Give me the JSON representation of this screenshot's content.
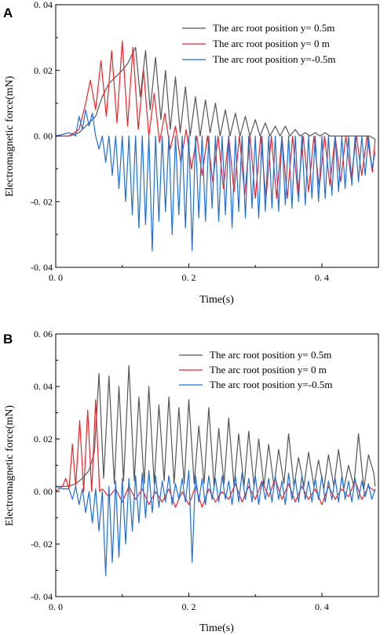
{
  "chart_data": [
    {
      "panel": "A",
      "type": "line",
      "xlabel": "Time(s)",
      "ylabel": "Electromagnetic force(mN)",
      "xlim": [
        0.0,
        0.485
      ],
      "ylim": [
        -0.04,
        0.04
      ],
      "xticks": [
        0.0,
        0.2,
        0.4
      ],
      "xtick_labels": [
        "0. 0",
        "0. 2",
        "0. 4"
      ],
      "yticks": [
        -0.04,
        -0.02,
        0.0,
        0.02,
        0.04
      ],
      "ytick_labels": [
        "-0. 04",
        "-0. 02",
        "0. 00",
        "0. 02",
        "0. 04"
      ],
      "legend_position": "top-right",
      "grid": false,
      "series": [
        {
          "name": "The arc root position y= 0.5m",
          "color": "#555555",
          "x": [
            0.0,
            0.02,
            0.035,
            0.05,
            0.06,
            0.07,
            0.08,
            0.09,
            0.1,
            0.108,
            0.115,
            0.12,
            0.127,
            0.135,
            0.142,
            0.15,
            0.158,
            0.165,
            0.172,
            0.18,
            0.187,
            0.195,
            0.202,
            0.21,
            0.217,
            0.225,
            0.232,
            0.24,
            0.247,
            0.255,
            0.262,
            0.27,
            0.277,
            0.285,
            0.292,
            0.3,
            0.307,
            0.315,
            0.322,
            0.33,
            0.337,
            0.345,
            0.352,
            0.36,
            0.367,
            0.375,
            0.382,
            0.39,
            0.397,
            0.405,
            0.412,
            0.42,
            0.427,
            0.435,
            0.442,
            0.45,
            0.457,
            0.465,
            0.472,
            0.48
          ],
          "y": [
            0.0,
            0.0,
            0.001,
            0.004,
            0.006,
            0.012,
            0.016,
            0.018,
            0.02,
            0.022,
            0.025,
            0.027,
            0.012,
            0.026,
            0.008,
            0.024,
            0.005,
            0.02,
            0.002,
            0.018,
            0.001,
            0.015,
            0.0,
            0.012,
            0.0,
            0.011,
            0.001,
            0.01,
            0.0,
            0.008,
            0.0,
            0.007,
            0.0,
            0.006,
            0.0,
            0.005,
            0.0,
            0.004,
            0.0,
            0.003,
            0.0,
            0.003,
            0.0,
            0.002,
            0.0,
            0.001,
            0.0,
            0.001,
            0.0,
            0.001,
            0.0,
            0.0,
            0.0,
            0.0,
            0.0,
            0.0,
            0.0,
            0.0,
            0.0,
            -0.001
          ]
        },
        {
          "name": "The arc root position y= 0  m",
          "color": "#e8262a",
          "x": [
            0.0,
            0.02,
            0.035,
            0.045,
            0.052,
            0.06,
            0.068,
            0.076,
            0.084,
            0.092,
            0.1,
            0.108,
            0.116,
            0.124,
            0.132,
            0.14,
            0.148,
            0.156,
            0.164,
            0.172,
            0.18,
            0.188,
            0.196,
            0.204,
            0.212,
            0.22,
            0.228,
            0.236,
            0.244,
            0.252,
            0.26,
            0.268,
            0.276,
            0.284,
            0.292,
            0.3,
            0.308,
            0.316,
            0.324,
            0.332,
            0.34,
            0.348,
            0.356,
            0.364,
            0.372,
            0.38,
            0.388,
            0.396,
            0.404,
            0.412,
            0.42,
            0.428,
            0.436,
            0.444,
            0.452,
            0.46,
            0.468,
            0.476,
            0.48
          ],
          "y": [
            0.0,
            0.0,
            0.002,
            0.01,
            0.017,
            0.008,
            0.023,
            0.006,
            0.026,
            0.004,
            0.029,
            0.003,
            0.027,
            0.002,
            0.02,
            0.0,
            0.013,
            -0.002,
            0.007,
            -0.004,
            0.003,
            -0.008,
            0.002,
            -0.01,
            0.0,
            -0.012,
            0.0,
            -0.014,
            0.0,
            -0.016,
            0.0,
            -0.017,
            0.0,
            -0.018,
            0.0,
            -0.019,
            0.0,
            -0.019,
            0.0,
            -0.019,
            0.0,
            -0.019,
            0.0,
            -0.018,
            0.0,
            -0.017,
            0.0,
            -0.016,
            0.0,
            -0.015,
            0.0,
            -0.014,
            0.0,
            -0.013,
            0.0,
            -0.012,
            0.0,
            -0.011,
            -0.001
          ]
        },
        {
          "name": "The arc root position y=-0.5m",
          "color": "#1f6fd4",
          "x": [
            0.0,
            0.02,
            0.03,
            0.035,
            0.04,
            0.045,
            0.05,
            0.055,
            0.06,
            0.065,
            0.07,
            0.075,
            0.08,
            0.085,
            0.09,
            0.095,
            0.1,
            0.105,
            0.11,
            0.115,
            0.12,
            0.125,
            0.13,
            0.135,
            0.14,
            0.145,
            0.15,
            0.155,
            0.16,
            0.165,
            0.17,
            0.175,
            0.18,
            0.185,
            0.19,
            0.195,
            0.2,
            0.205,
            0.21,
            0.215,
            0.22,
            0.225,
            0.23,
            0.235,
            0.24,
            0.245,
            0.25,
            0.255,
            0.26,
            0.265,
            0.27,
            0.275,
            0.28,
            0.285,
            0.29,
            0.295,
            0.3,
            0.305,
            0.31,
            0.315,
            0.32,
            0.325,
            0.33,
            0.335,
            0.34,
            0.345,
            0.35,
            0.355,
            0.36,
            0.365,
            0.37,
            0.375,
            0.38,
            0.385,
            0.39,
            0.395,
            0.4,
            0.405,
            0.41,
            0.415,
            0.42,
            0.425,
            0.43,
            0.435,
            0.44,
            0.445,
            0.45,
            0.455,
            0.46,
            0.465,
            0.47,
            0.475,
            0.48
          ],
          "y": [
            0.0,
            0.001,
            0.0,
            0.006,
            0.002,
            0.008,
            0.003,
            0.007,
            0.0,
            -0.004,
            0.0,
            -0.008,
            0.0,
            -0.012,
            0.0,
            -0.016,
            0.0,
            -0.02,
            0.0,
            -0.024,
            0.0,
            -0.028,
            0.0,
            -0.027,
            0.0,
            -0.035,
            0.0,
            -0.026,
            0.0,
            -0.023,
            0.0,
            -0.03,
            0.0,
            -0.024,
            0.0,
            -0.028,
            0.0,
            -0.035,
            0.0,
            -0.025,
            0.0,
            -0.026,
            0.0,
            -0.022,
            0.0,
            -0.026,
            0.0,
            -0.024,
            0.0,
            -0.028,
            0.0,
            -0.023,
            0.0,
            -0.025,
            0.0,
            -0.022,
            0.0,
            -0.025,
            0.0,
            -0.023,
            0.0,
            -0.022,
            0.0,
            -0.023,
            0.0,
            -0.021,
            0.0,
            -0.022,
            0.0,
            -0.02,
            0.0,
            -0.021,
            0.0,
            -0.019,
            0.0,
            -0.02,
            0.0,
            -0.019,
            0.0,
            -0.018,
            0.0,
            -0.017,
            0.0,
            -0.016,
            0.0,
            -0.015,
            0.0,
            -0.014,
            0.0,
            -0.012,
            0.0,
            -0.01,
            -0.005
          ]
        }
      ]
    },
    {
      "panel": "B",
      "type": "line",
      "xlabel": "Time(s)",
      "ylabel": "Electromagnetic force(mN)",
      "xlim": [
        0.0,
        0.485
      ],
      "ylim": [
        -0.04,
        0.06
      ],
      "xticks": [
        0.0,
        0.2,
        0.4
      ],
      "xtick_labels": [
        "0. 0",
        "0. 2",
        "0. 4"
      ],
      "yticks": [
        -0.04,
        -0.02,
        0.0,
        0.02,
        0.04,
        0.06
      ],
      "ytick_labels": [
        "-0. 04",
        "-0. 02",
        "0. 00",
        "0. 02",
        "0. 04",
        "0. 06"
      ],
      "legend_position": "top-right",
      "grid": false,
      "series": [
        {
          "name": "The arc root position y= 0.5m",
          "color": "#555555",
          "x": [
            0.0,
            0.02,
            0.03,
            0.04,
            0.05,
            0.058,
            0.065,
            0.072,
            0.08,
            0.088,
            0.095,
            0.102,
            0.11,
            0.118,
            0.125,
            0.133,
            0.14,
            0.148,
            0.155,
            0.163,
            0.17,
            0.178,
            0.185,
            0.193,
            0.2,
            0.208,
            0.215,
            0.223,
            0.23,
            0.238,
            0.245,
            0.253,
            0.26,
            0.268,
            0.275,
            0.283,
            0.29,
            0.298,
            0.305,
            0.313,
            0.32,
            0.328,
            0.335,
            0.343,
            0.35,
            0.358,
            0.365,
            0.373,
            0.38,
            0.388,
            0.395,
            0.403,
            0.41,
            0.418,
            0.425,
            0.433,
            0.44,
            0.448,
            0.455,
            0.463,
            0.47,
            0.478,
            0.48
          ],
          "y": [
            0.002,
            0.002,
            0.003,
            0.005,
            0.008,
            0.015,
            0.045,
            0.005,
            0.044,
            0.003,
            0.04,
            0.004,
            0.048,
            0.004,
            0.036,
            0.003,
            0.04,
            0.003,
            0.033,
            0.004,
            0.036,
            0.003,
            0.032,
            0.003,
            0.035,
            0.003,
            0.025,
            0.003,
            0.032,
            0.002,
            0.024,
            0.003,
            0.028,
            0.002,
            0.022,
            0.002,
            0.023,
            0.002,
            0.02,
            0.002,
            0.018,
            0.002,
            0.016,
            0.003,
            0.022,
            0.002,
            0.013,
            0.002,
            0.015,
            0.002,
            0.012,
            0.001,
            0.014,
            0.002,
            0.016,
            0.001,
            0.01,
            0.002,
            0.022,
            0.001,
            0.014,
            0.007,
            0.002
          ]
        },
        {
          "name": "The arc root position y= 0  m",
          "color": "#e8262a",
          "x": [
            0.0,
            0.01,
            0.015,
            0.02,
            0.025,
            0.03,
            0.036,
            0.042,
            0.048,
            0.054,
            0.06,
            0.066,
            0.07,
            0.08,
            0.09,
            0.1,
            0.11,
            0.12,
            0.13,
            0.14,
            0.15,
            0.16,
            0.17,
            0.18,
            0.19,
            0.2,
            0.21,
            0.22,
            0.23,
            0.24,
            0.25,
            0.26,
            0.27,
            0.28,
            0.29,
            0.3,
            0.31,
            0.32,
            0.33,
            0.34,
            0.35,
            0.36,
            0.37,
            0.38,
            0.39,
            0.4,
            0.41,
            0.42,
            0.43,
            0.44,
            0.45,
            0.46,
            0.47,
            0.48
          ],
          "y": [
            0.0,
            0.002,
            0.005,
            0.001,
            0.018,
            0.002,
            0.027,
            0.0,
            0.031,
            0.0,
            0.035,
            0.0,
            0.001,
            -0.002,
            0.001,
            -0.004,
            0.002,
            -0.003,
            0.001,
            -0.005,
            0.0,
            -0.004,
            0.001,
            -0.006,
            0.0,
            -0.005,
            0.002,
            -0.006,
            0.001,
            -0.004,
            0.0,
            -0.003,
            0.003,
            -0.004,
            0.002,
            -0.003,
            0.004,
            -0.002,
            0.005,
            -0.003,
            0.003,
            -0.004,
            0.002,
            -0.003,
            0.001,
            -0.005,
            0.002,
            -0.003,
            0.001,
            -0.002,
            0.004,
            -0.003,
            0.002,
            0.0
          ]
        },
        {
          "name": "The arc root position y=-0.5m",
          "color": "#1f6fd4",
          "x": [
            0.0,
            0.01,
            0.02,
            0.025,
            0.03,
            0.035,
            0.04,
            0.045,
            0.05,
            0.055,
            0.06,
            0.065,
            0.07,
            0.075,
            0.08,
            0.085,
            0.09,
            0.095,
            0.1,
            0.105,
            0.11,
            0.115,
            0.12,
            0.125,
            0.13,
            0.135,
            0.14,
            0.145,
            0.15,
            0.155,
            0.16,
            0.165,
            0.17,
            0.175,
            0.18,
            0.185,
            0.19,
            0.195,
            0.2,
            0.205,
            0.21,
            0.215,
            0.22,
            0.225,
            0.23,
            0.235,
            0.24,
            0.245,
            0.25,
            0.255,
            0.26,
            0.265,
            0.27,
            0.275,
            0.28,
            0.285,
            0.29,
            0.295,
            0.3,
            0.305,
            0.31,
            0.315,
            0.32,
            0.325,
            0.33,
            0.335,
            0.34,
            0.345,
            0.35,
            0.355,
            0.36,
            0.365,
            0.37,
            0.375,
            0.38,
            0.385,
            0.39,
            0.395,
            0.4,
            0.405,
            0.41,
            0.415,
            0.42,
            0.425,
            0.43,
            0.435,
            0.44,
            0.445,
            0.45,
            0.455,
            0.46,
            0.465,
            0.47,
            0.475,
            0.48
          ],
          "y": [
            0.002,
            0.001,
            0.001,
            -0.003,
            0.002,
            -0.005,
            0.001,
            -0.008,
            0.0,
            -0.012,
            0.001,
            -0.015,
            0.0,
            -0.032,
            0.002,
            -0.027,
            0.004,
            -0.025,
            0.005,
            -0.02,
            0.005,
            -0.015,
            0.006,
            -0.012,
            0.007,
            -0.01,
            0.008,
            -0.008,
            0.006,
            -0.006,
            0.004,
            -0.004,
            0.006,
            -0.005,
            0.003,
            -0.003,
            0.005,
            -0.004,
            0.008,
            -0.027,
            0.006,
            -0.004,
            0.005,
            -0.005,
            0.006,
            -0.003,
            0.005,
            -0.004,
            0.006,
            -0.003,
            0.004,
            -0.005,
            0.006,
            -0.004,
            0.007,
            -0.003,
            0.005,
            -0.004,
            0.006,
            -0.005,
            0.004,
            -0.003,
            0.005,
            -0.004,
            0.006,
            -0.003,
            0.004,
            -0.005,
            0.007,
            -0.003,
            0.005,
            -0.004,
            0.006,
            -0.003,
            0.004,
            -0.004,
            0.005,
            -0.003,
            0.006,
            -0.004,
            0.004,
            -0.003,
            0.005,
            -0.004,
            0.006,
            -0.003,
            0.004,
            -0.004,
            0.005,
            -0.003,
            0.004,
            -0.002,
            0.003,
            -0.003,
            0.001
          ]
        }
      ]
    }
  ]
}
